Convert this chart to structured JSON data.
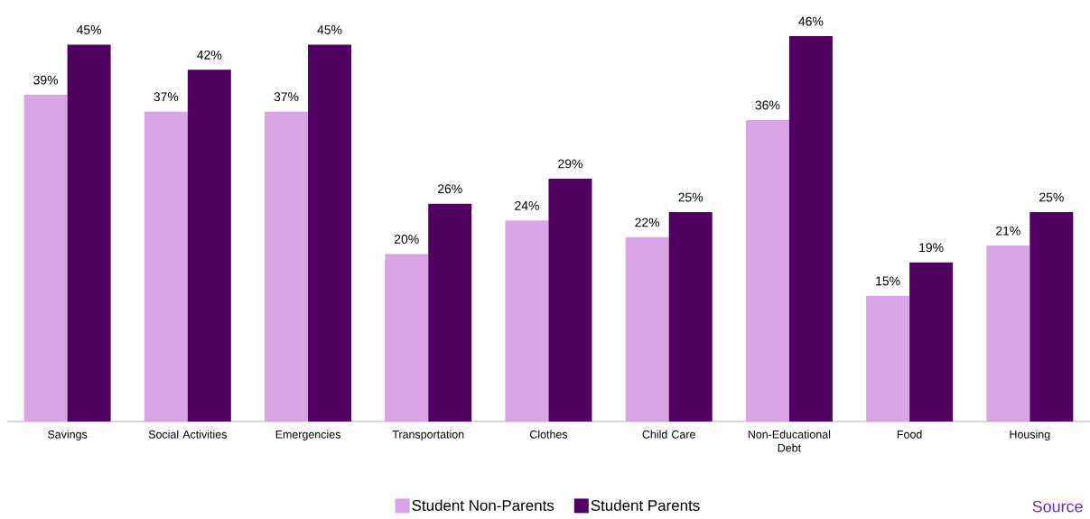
{
  "chart_data": {
    "type": "bar",
    "categories": [
      "Savings",
      "Social Activities",
      "Emergencies",
      "Transportation",
      "Clothes",
      "Child Care",
      "Non-Educational Debt",
      "Food",
      "Housing"
    ],
    "series": [
      {
        "name": "Student Non-Parents",
        "color": "#d9a3e6",
        "values": [
          39,
          37,
          37,
          20,
          24,
          22,
          36,
          15,
          21
        ],
        "value_labels": [
          "39%",
          "37%",
          "37%",
          "20%",
          "24%",
          "22%",
          "36%",
          "15%",
          "21%"
        ]
      },
      {
        "name": "Student Parents",
        "color": "#4f0060",
        "values": [
          45,
          42,
          45,
          26,
          29,
          25,
          46,
          19,
          25
        ],
        "value_labels": [
          "45%",
          "42%",
          "45%",
          "26%",
          "29%",
          "25%",
          "46%",
          "19%",
          "25%"
        ]
      }
    ],
    "legend": "bottom",
    "annotations": [
      "Source"
    ]
  }
}
